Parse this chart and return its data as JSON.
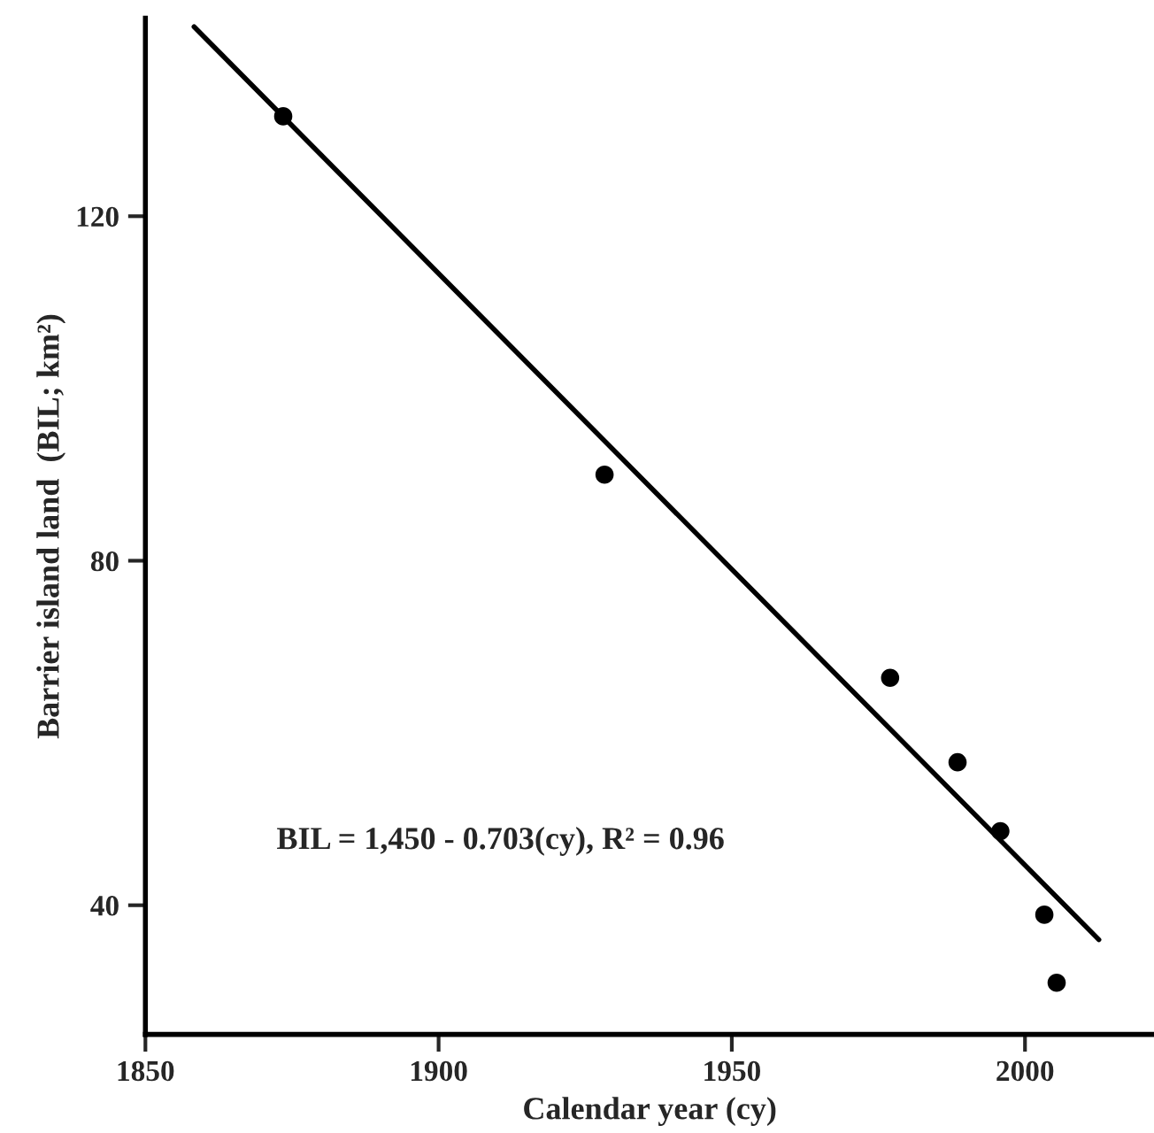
{
  "chart_data": {
    "type": "scatter",
    "xlabel": "Calendar year (cy)",
    "ylabel": "Barrier island land  (BIL; km²)",
    "xlim": [
      1850,
      2022
    ],
    "ylim": [
      25,
      143
    ],
    "xticks": [
      1850,
      1900,
      1950,
      2000
    ],
    "yticks": [
      40,
      80,
      120
    ],
    "grid": false,
    "legend": false,
    "annotations": [
      "BIL = 1,450 - 0.703(cy), R² = 0.96"
    ],
    "series": [
      {
        "marker": "circle",
        "color": "#000000",
        "x": [
          1873.5,
          1928.3,
          1977,
          1988.5,
          1995.8,
          2003.3,
          2005.4
        ],
        "values": [
          131.6,
          90.0,
          66.4,
          56.6,
          48.6,
          38.9,
          31.0
        ]
      },
      {
        "type": "line",
        "color": "#000000",
        "x": [
          1858.3,
          2012.6
        ],
        "values": [
          142.0,
          36.0
        ],
        "line_style": "solid"
      }
    ]
  }
}
